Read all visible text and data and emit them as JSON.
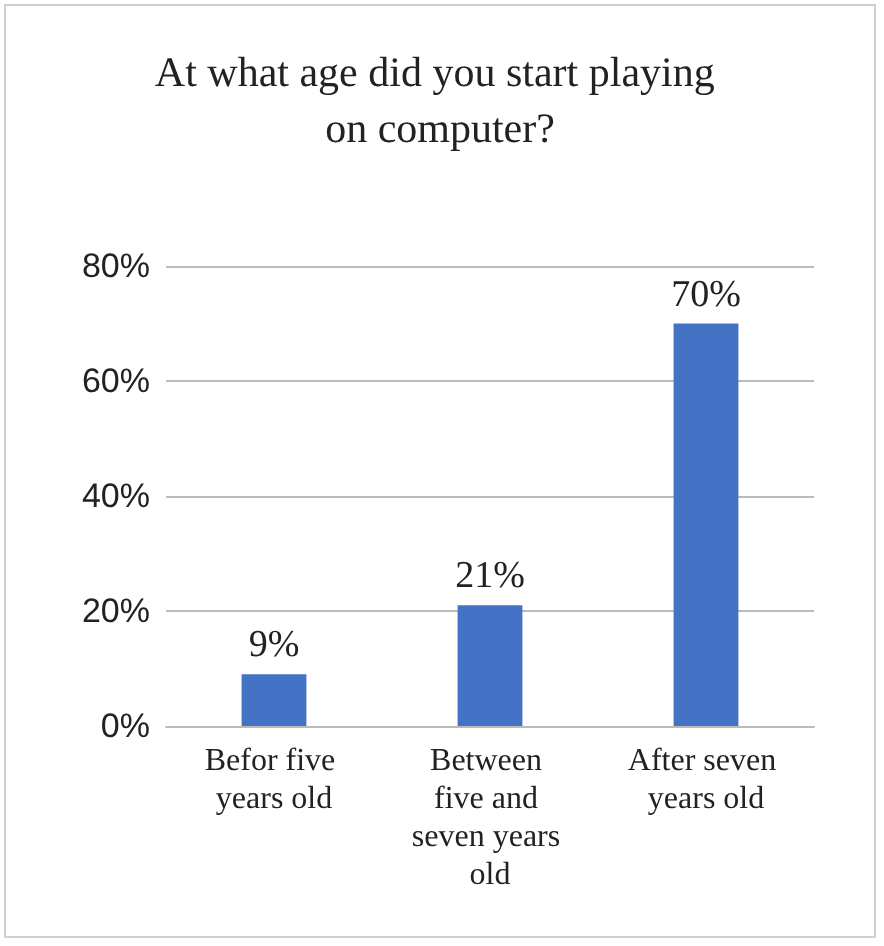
{
  "chart_data": {
    "type": "bar",
    "title": "At what age did you start playing on computer?",
    "categories": [
      "Befor five years old",
      "Between five and seven years old",
      "After seven years old"
    ],
    "values": [
      9,
      21,
      70
    ],
    "color": "#4472c4",
    "value_labels": [
      "9%",
      "21%",
      "70%"
    ],
    "ylim": [
      0,
      80
    ],
    "yticks": [
      {
        "value": 0,
        "label": "0%"
      },
      {
        "value": 20,
        "label": "20%"
      },
      {
        "value": 40,
        "label": "40%"
      },
      {
        "value": 60,
        "label": "60%"
      },
      {
        "value": 80,
        "label": "80%"
      }
    ],
    "grid": "y"
  }
}
